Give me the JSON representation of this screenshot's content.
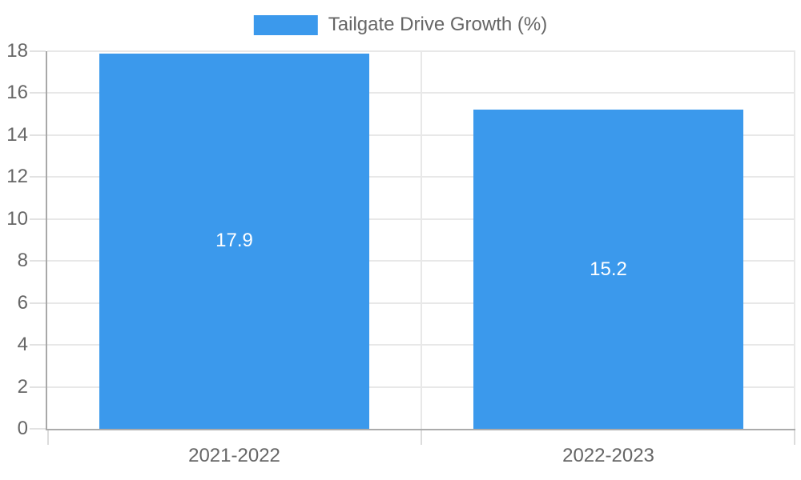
{
  "legend": {
    "label": "Tailgate Drive Growth (%)"
  },
  "chart_data": {
    "type": "bar",
    "title": "",
    "categories": [
      "2021-2022",
      "2022-2023"
    ],
    "series": [
      {
        "name": "Tailgate Drive Growth (%)",
        "values": [
          17.9,
          15.2
        ],
        "color": "#3b99ec"
      }
    ],
    "data_labels": [
      "17.9",
      "15.2"
    ],
    "xlabel": "",
    "ylabel": "",
    "ylim": [
      0,
      18
    ],
    "yticks": [
      0,
      2,
      4,
      6,
      8,
      10,
      12,
      14,
      16,
      18
    ],
    "grid": true,
    "legend_position": "top-center",
    "bar_label_position": "center"
  },
  "colors": {
    "bar": "#3b99ec",
    "axis_text": "#666666",
    "grid_line": "#e8e8e8",
    "axis_line": "#a8a8a8",
    "data_label": "#ffffff",
    "background": "#ffffff"
  }
}
